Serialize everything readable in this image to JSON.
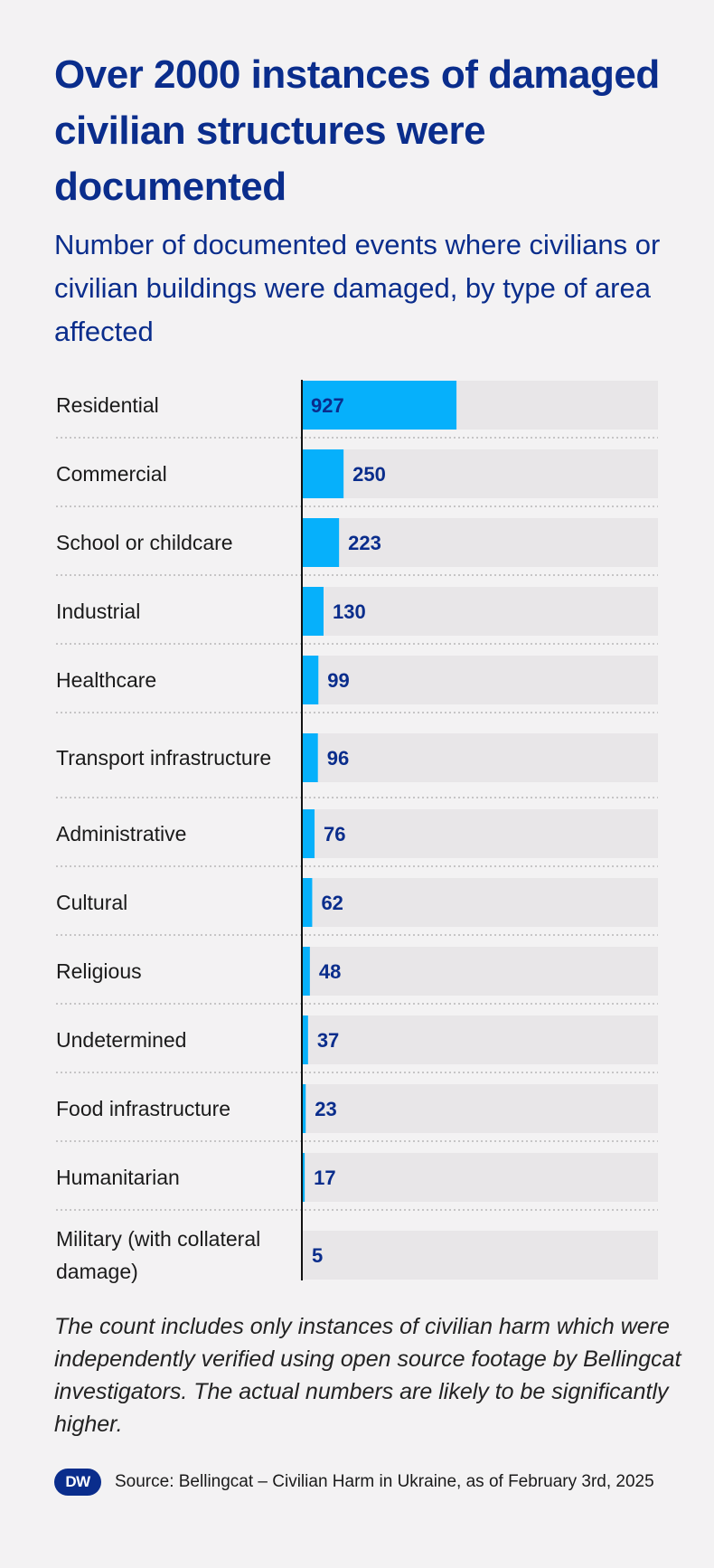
{
  "header": {
    "title": "Over 2000 instances of damaged civilian structures were documented",
    "subtitle": "Number of documented events where civilians or civilian buildings were damaged, by type of area affected"
  },
  "chart_data": {
    "type": "bar",
    "orientation": "horizontal",
    "title": "Over 2000 instances of damaged civilian structures were documented",
    "subtitle": "Number of documented events where civilians or civilian buildings were damaged, by type of area affected",
    "xlabel": "",
    "ylabel": "",
    "xlim": [
      0,
      2135
    ],
    "grid": false,
    "categories": [
      "Residential",
      "Commercial",
      "School or childcare",
      "Industrial",
      "Healthcare",
      "Transport infrastructure",
      "Administrative",
      "Cultural",
      "Religious",
      "Undetermined",
      "Food infrastructure",
      "Humanitarian",
      "Military (with collateral damage)"
    ],
    "values": [
      927,
      250,
      223,
      130,
      99,
      96,
      76,
      62,
      48,
      37,
      23,
      17,
      5
    ],
    "colors": {
      "bar": "#06b0fb",
      "track": "#e8e6e8",
      "axis": "#111111",
      "value_text": "#0a2d8c"
    }
  },
  "footnote": "The count includes only instances of civilian harm which were independently verified using open source footage by Bellingcat investigators. The actual numbers are likely to be significantly higher.",
  "source": "Source: Bellingcat – Civilian Harm in Ukraine, as of February 3rd, 2025",
  "logo": {
    "text": "DW",
    "icon": "dw-logo-icon"
  },
  "colors": {
    "title": "#0a2d8c",
    "background": "#f3f2f3"
  }
}
